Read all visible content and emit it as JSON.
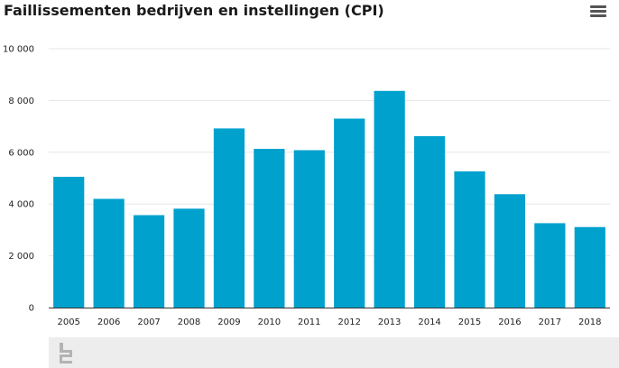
{
  "chart_data": {
    "type": "bar",
    "title": "Faillissementen bedrijven en instellingen (CPI)",
    "xlabel": "",
    "ylabel": "",
    "categories": [
      "2005",
      "2006",
      "2007",
      "2008",
      "2009",
      "2010",
      "2011",
      "2012",
      "2013",
      "2014",
      "2015",
      "2016",
      "2017",
      "2018"
    ],
    "values": [
      5050,
      4200,
      3570,
      3820,
      6920,
      6130,
      6080,
      7300,
      8370,
      6620,
      5260,
      4380,
      3260,
      3110
    ],
    "ylim": [
      0,
      10000
    ],
    "yticks": [
      0,
      2000,
      4000,
      6000,
      8000,
      10000
    ],
    "ytick_labels": [
      "0",
      "2 000",
      "4 000",
      "6 000",
      "8 000",
      "10 000"
    ],
    "grid": true,
    "bar_color": "#00a1cd"
  },
  "menu": {
    "icon": "hamburger-menu-icon"
  },
  "footer": {
    "logo_icon": "cbs-logo-icon"
  }
}
